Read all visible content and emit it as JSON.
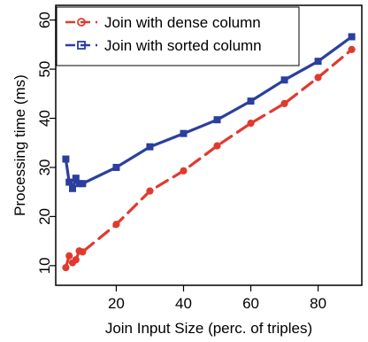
{
  "chart_data": {
    "type": "line",
    "xlabel": "Join Input Size (perc. of triples)",
    "ylabel": "Processing time (ms)",
    "xlim": [
      2,
      93
    ],
    "ylim": [
      6,
      63
    ],
    "x_ticks": [
      20,
      40,
      60,
      80
    ],
    "y_ticks": [
      10,
      20,
      30,
      40,
      50,
      60
    ],
    "grid": false,
    "legend_position": "top-left",
    "series": [
      {
        "name": "Join with dense column",
        "color": "#e03a2f",
        "marker": "circle",
        "line_style": "dashed",
        "x": [
          5,
          6,
          7,
          8,
          9,
          10,
          20,
          30,
          40,
          50,
          60,
          70,
          80,
          90
        ],
        "y": [
          9.6,
          12.0,
          10.6,
          11.2,
          13.0,
          12.8,
          18.4,
          25.2,
          29.3,
          34.4,
          39.0,
          43.0,
          48.3,
          54.0
        ]
      },
      {
        "name": "Join with sorted column",
        "color": "#2b3f9e",
        "marker": "square",
        "line_style": "solid",
        "x": [
          5,
          6,
          7,
          8,
          9,
          10,
          20,
          30,
          40,
          50,
          60,
          70,
          80,
          90
        ],
        "y": [
          31.7,
          27.0,
          25.7,
          27.8,
          26.7,
          26.7,
          30.0,
          34.2,
          36.9,
          39.7,
          43.5,
          47.8,
          51.6,
          56.6
        ]
      }
    ]
  }
}
